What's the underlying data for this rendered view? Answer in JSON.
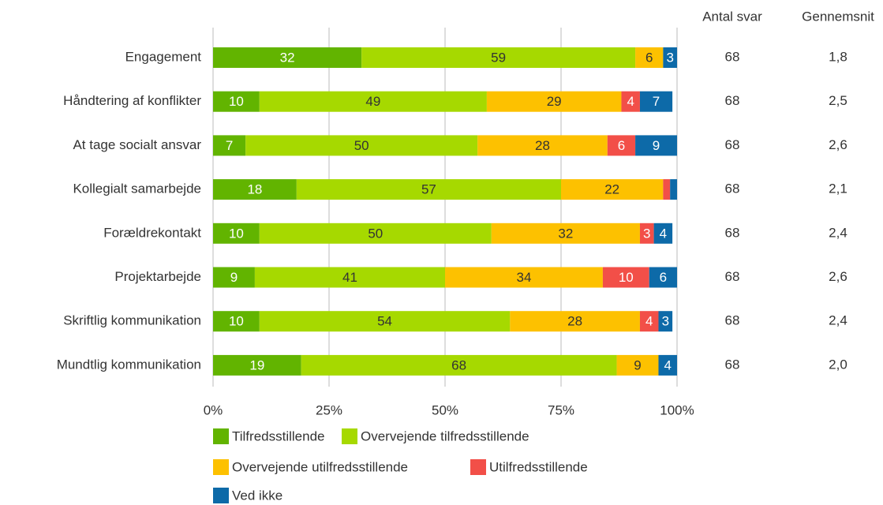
{
  "chart_data": {
    "type": "stacked-barh",
    "categories": [
      "Engagement",
      "Håndtering af konflikter",
      "At tage socialt ansvar",
      "Kollegialt samarbejde",
      "Forældrekontakt",
      "Projektarbejde",
      "Skriftlig kommunikation",
      "Mundtlig kommunikation"
    ],
    "series": [
      {
        "name": "Tilfredsstillende",
        "color": "#62b400",
        "values": [
          32,
          10,
          7,
          18,
          10,
          9,
          10,
          19
        ]
      },
      {
        "name": "Overvejende tilfredsstillende",
        "color": "#a6d900",
        "values": [
          59,
          49,
          50,
          57,
          50,
          41,
          54,
          68
        ]
      },
      {
        "name": "Overvejende utilfredsstillende",
        "color": "#fdc100",
        "values": [
          6,
          29,
          28,
          22,
          32,
          34,
          28,
          9
        ]
      },
      {
        "name": "Utilfredsstillende",
        "color": "#f24f48",
        "values": [
          0,
          4,
          6,
          1.5,
          3,
          10,
          4,
          0
        ]
      },
      {
        "name": "Ved ikke",
        "color": "#0d6aa8",
        "values": [
          3,
          7,
          9,
          1.5,
          4,
          6,
          3,
          4
        ]
      }
    ],
    "xlim": [
      0,
      100
    ],
    "xticks": [
      {
        "value": 0,
        "label": "0%"
      },
      {
        "value": 25,
        "label": "25%"
      },
      {
        "value": 50,
        "label": "50%"
      },
      {
        "value": 75,
        "label": "75%"
      },
      {
        "value": 100,
        "label": "100%"
      }
    ],
    "grid": true,
    "columns": [
      {
        "name": "Antal svar",
        "values": [
          68,
          68,
          68,
          68,
          68,
          68,
          68,
          68
        ]
      },
      {
        "name": "Gennemsnit",
        "values": [
          1.8,
          2.5,
          2.6,
          2.1,
          2.4,
          2.6,
          2.4,
          2.0
        ],
        "value_labels": [
          "1,8",
          "2,5",
          "2,6",
          "2,1",
          "2,4",
          "2,6",
          "2,4",
          "2,0"
        ]
      }
    ]
  }
}
